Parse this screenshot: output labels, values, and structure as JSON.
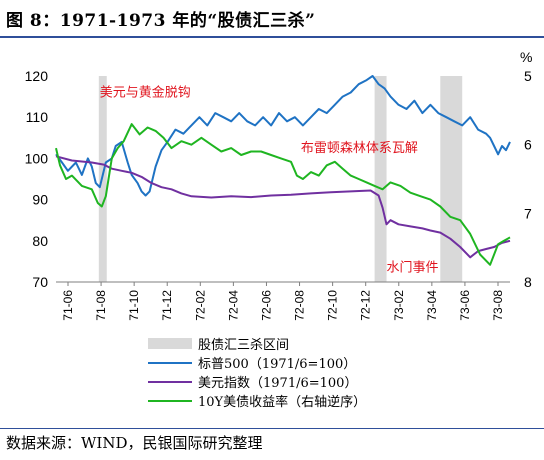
{
  "title": "图 8：1971-1973 年的“股债汇三杀”",
  "source": "数据来源：WIND，民银国际研究整理",
  "chart_data": {
    "type": "line",
    "x_ticks": [
      "71-06",
      "71-08",
      "71-10",
      "71-12",
      "72-02",
      "72-04",
      "72-06",
      "72-08",
      "72-10",
      "72-12",
      "73-02",
      "73-04",
      "73-06",
      "73-08"
    ],
    "x_range": [
      1971.42,
      1973.7
    ],
    "y_left": {
      "ticks": [
        "70",
        "80",
        "90",
        "100",
        "110",
        "120"
      ],
      "range": [
        70,
        120
      ]
    },
    "y_right": {
      "label": "%",
      "ticks": [
        "5",
        "6",
        "7",
        "8"
      ],
      "range": [
        5,
        8
      ],
      "reversed": true
    },
    "shaded_periods": [
      {
        "start": 1971.635,
        "end": 1971.675
      },
      {
        "start": 1973.02,
        "end": 1973.08
      },
      {
        "start": 1973.35,
        "end": 1973.46
      }
    ],
    "annotations": [
      {
        "text": "美元与黄金脱钩",
        "x": 1971.64,
        "y": 115
      },
      {
        "text": "布雷顿森林体系瓦解",
        "x": 1972.65,
        "y": 101.5
      },
      {
        "text": "水门事件",
        "x": 1973.08,
        "y": 72.5
      }
    ],
    "series": [
      {
        "name": "标普500（1971/6=100）",
        "axis": "left",
        "color": "#1f73c4",
        "x": [
          1971.42,
          1971.45,
          1971.48,
          1971.52,
          1971.55,
          1971.58,
          1971.6,
          1971.62,
          1971.64,
          1971.67,
          1971.7,
          1971.72,
          1971.75,
          1971.78,
          1971.8,
          1971.83,
          1971.85,
          1971.87,
          1971.89,
          1971.92,
          1971.95,
          1971.98,
          1972.02,
          1972.06,
          1972.1,
          1972.14,
          1972.18,
          1972.22,
          1972.26,
          1972.3,
          1972.34,
          1972.38,
          1972.42,
          1972.46,
          1972.5,
          1972.54,
          1972.58,
          1972.62,
          1972.66,
          1972.7,
          1972.74,
          1972.78,
          1972.82,
          1972.86,
          1972.9,
          1972.94,
          1972.98,
          1973.01,
          1973.04,
          1973.07,
          1973.1,
          1973.14,
          1973.18,
          1973.22,
          1973.26,
          1973.3,
          1973.34,
          1973.38,
          1973.42,
          1973.46,
          1973.5,
          1973.54,
          1973.58,
          1973.6,
          1973.62,
          1973.64,
          1973.66,
          1973.68,
          1973.7
        ],
        "values": [
          101,
          99,
          97,
          99,
          96,
          100,
          98,
          94,
          93,
          99,
          100,
          103,
          104,
          99,
          96,
          94,
          92,
          91,
          92,
          98,
          102,
          104,
          107,
          106,
          108,
          110,
          108,
          111,
          110,
          109,
          111,
          109,
          108,
          110,
          108,
          111,
          109,
          110,
          108,
          110,
          112,
          111,
          113,
          115,
          116,
          118,
          119,
          120,
          118,
          117,
          115,
          113,
          112,
          114,
          111,
          113,
          111,
          110,
          109,
          108,
          110,
          107,
          106,
          105,
          103,
          101,
          103,
          102,
          104
        ]
      },
      {
        "name": "美元指数（1971/6=100）",
        "axis": "left",
        "color": "#7030a0",
        "x": [
          1971.42,
          1971.5,
          1971.6,
          1971.66,
          1971.7,
          1971.75,
          1971.8,
          1971.85,
          1971.9,
          1971.95,
          1972.0,
          1972.05,
          1972.1,
          1972.2,
          1972.3,
          1972.4,
          1972.5,
          1972.6,
          1972.7,
          1972.8,
          1972.9,
          1973.0,
          1973.04,
          1973.06,
          1973.08,
          1973.1,
          1973.14,
          1973.2,
          1973.26,
          1973.3,
          1973.35,
          1973.4,
          1973.45,
          1973.5,
          1973.54,
          1973.58,
          1973.62,
          1973.66,
          1973.7
        ],
        "values": [
          100.5,
          99.5,
          99,
          98.5,
          97.5,
          97,
          96.5,
          95.5,
          94,
          93,
          92.5,
          91.5,
          90.8,
          90.5,
          90.8,
          90.6,
          91,
          91.2,
          91.5,
          91.8,
          92,
          92.2,
          91,
          88,
          84,
          85,
          84,
          83.5,
          83,
          82.5,
          82,
          80.5,
          78.5,
          76,
          77.5,
          78,
          78.5,
          79.5,
          80
        ]
      },
      {
        "name": "10Y美债收益率（右轴逆序）",
        "axis": "right",
        "color": "#1fb521",
        "x": [
          1971.42,
          1971.44,
          1971.47,
          1971.5,
          1971.55,
          1971.6,
          1971.63,
          1971.65,
          1971.67,
          1971.7,
          1971.73,
          1971.76,
          1971.8,
          1971.84,
          1971.88,
          1971.92,
          1971.96,
          1972.0,
          1972.05,
          1972.1,
          1972.15,
          1972.2,
          1972.25,
          1972.3,
          1972.35,
          1972.4,
          1972.45,
          1972.5,
          1972.55,
          1972.6,
          1972.63,
          1972.66,
          1972.7,
          1972.74,
          1972.78,
          1972.82,
          1972.86,
          1972.9,
          1972.94,
          1972.98,
          1973.02,
          1973.06,
          1973.1,
          1973.15,
          1973.2,
          1973.25,
          1973.3,
          1973.35,
          1973.4,
          1973.45,
          1973.5,
          1973.55,
          1973.6,
          1973.64,
          1973.67,
          1973.7
        ],
        "values": [
          6.05,
          6.3,
          6.5,
          6.45,
          6.6,
          6.65,
          6.85,
          6.9,
          6.75,
          6.2,
          6.05,
          5.95,
          5.7,
          5.85,
          5.75,
          5.8,
          5.9,
          6.05,
          5.95,
          6.0,
          5.9,
          6.0,
          6.1,
          6.05,
          6.15,
          6.1,
          6.1,
          6.15,
          6.2,
          6.25,
          6.45,
          6.5,
          6.4,
          6.45,
          6.3,
          6.25,
          6.35,
          6.45,
          6.5,
          6.55,
          6.6,
          6.65,
          6.55,
          6.6,
          6.7,
          6.75,
          6.8,
          6.9,
          7.05,
          7.1,
          7.3,
          7.6,
          7.75,
          7.45,
          7.4,
          7.35
        ]
      }
    ],
    "legend": [
      {
        "kind": "area",
        "label": "股债汇三杀区间",
        "color": "#d9d9d9"
      },
      {
        "kind": "line",
        "label": "标普500（1971/6=100）",
        "color": "#1f73c4"
      },
      {
        "kind": "line",
        "label": "美元指数（1971/6=100）",
        "color": "#7030a0"
      },
      {
        "kind": "line",
        "label": "10Y美债收益率（右轴逆序）",
        "color": "#1fb521"
      }
    ],
    "legend_position": "bottom"
  }
}
